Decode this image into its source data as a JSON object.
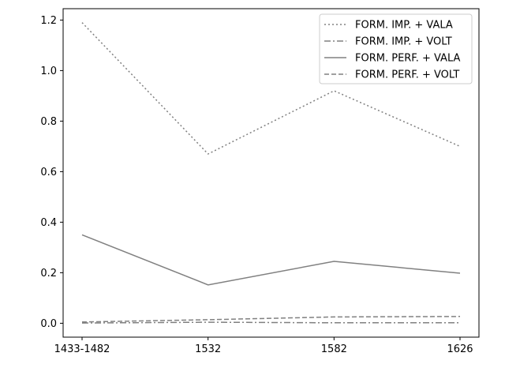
{
  "chart_data": {
    "type": "line",
    "categories": [
      "1433-1482",
      "1532",
      "1582",
      "1626"
    ],
    "series": [
      {
        "name": "FORM. IMP. + VALA",
        "values": [
          1.19,
          0.67,
          0.92,
          0.7
        ],
        "style": "dotted",
        "color": "#808080"
      },
      {
        "name": "FORM. IMP. + VOLT",
        "values": [
          0.001,
          0.004,
          0.002,
          0.002
        ],
        "style": "dashdot",
        "color": "#808080"
      },
      {
        "name": "FORM. PERF. + VALA",
        "values": [
          0.35,
          0.152,
          0.245,
          0.198
        ],
        "style": "solid",
        "color": "#808080"
      },
      {
        "name": "FORM. PERF. + VOLT",
        "values": [
          0.005,
          0.014,
          0.025,
          0.027
        ],
        "style": "dashed",
        "color": "#808080"
      }
    ],
    "y_ticks": [
      "0.0",
      "0.2",
      "0.4",
      "0.6",
      "0.8",
      "1.0",
      "1.2"
    ],
    "y_tick_values": [
      0,
      0.2,
      0.4,
      0.6,
      0.8,
      1.0,
      1.2
    ],
    "ylim": [
      -0.055,
      1.245
    ],
    "title": "",
    "xlabel": "",
    "ylabel": "",
    "grid": false,
    "legend_position": "top-right"
  }
}
